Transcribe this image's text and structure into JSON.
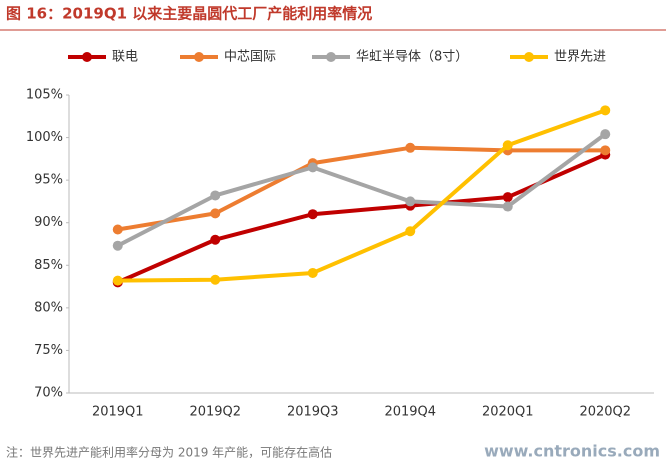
{
  "chart_data": {
    "type": "line",
    "title": "图 16：2019Q1 以来主要晶圆代工厂产能利用率情况",
    "note": "注：世界先进产能利用率分母为 2019 年产能，可能存在高估",
    "watermark": "www.cntronics.com",
    "categories": [
      "2019Q1",
      "2019Q2",
      "2019Q3",
      "2019Q4",
      "2020Q1",
      "2020Q2"
    ],
    "series": [
      {
        "name": "联电",
        "color": "#c00000",
        "values": [
          83,
          88,
          91,
          92,
          93,
          98
        ]
      },
      {
        "name": "中芯国际",
        "color": "#ed7d31",
        "values": [
          89.2,
          91.1,
          97,
          98.8,
          98.5,
          98.5
        ]
      },
      {
        "name": "华虹半导体（8寸）",
        "color": "#a5a5a5",
        "values": [
          87.3,
          93.2,
          96.5,
          92.5,
          91.9,
          100.4
        ]
      },
      {
        "name": "世界先进",
        "color": "#ffc000",
        "values": [
          83.2,
          83.3,
          84.1,
          89,
          99.1,
          103.2
        ]
      }
    ],
    "ylim": [
      70,
      105
    ],
    "yticks": [
      {
        "value": 70,
        "label": "70%"
      },
      {
        "value": 75,
        "label": "75%"
      },
      {
        "value": 80,
        "label": "80%"
      },
      {
        "value": 85,
        "label": "85%"
      },
      {
        "value": 90,
        "label": "90%"
      },
      {
        "value": 95,
        "label": "95%"
      },
      {
        "value": 100,
        "label": "100%"
      },
      {
        "value": 105,
        "label": "105%"
      }
    ],
    "grid": false,
    "legend": "top"
  }
}
